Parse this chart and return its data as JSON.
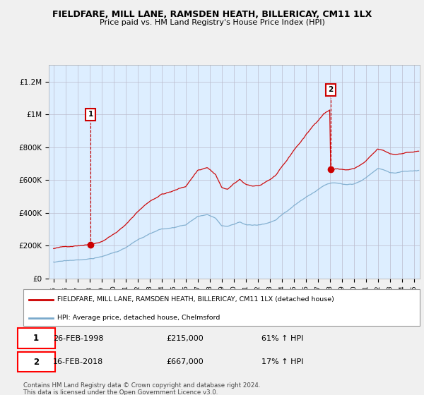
{
  "title": "FIELDFARE, MILL LANE, RAMSDEN HEATH, BILLERICAY, CM11 1LX",
  "subtitle": "Price paid vs. HM Land Registry's House Price Index (HPI)",
  "legend_line1": "FIELDFARE, MILL LANE, RAMSDEN HEATH, BILLERICAY, CM11 1LX (detached house)",
  "legend_line2": "HPI: Average price, detached house, Chelmsford",
  "sale1_date": "26-FEB-1998",
  "sale1_price": "£215,000",
  "sale1_hpi": "61% ↑ HPI",
  "sale2_date": "16-FEB-2018",
  "sale2_price": "£667,000",
  "sale2_hpi": "17% ↑ HPI",
  "footer": "Contains HM Land Registry data © Crown copyright and database right 2024.\nThis data is licensed under the Open Government Licence v3.0.",
  "red_color": "#cc0000",
  "blue_color": "#7aaacc",
  "plot_bg_color": "#ddeeff",
  "background_color": "#f0f0f0",
  "ylim": [
    0,
    1300000
  ],
  "yticks": [
    0,
    200000,
    400000,
    600000,
    800000,
    1000000,
    1200000
  ],
  "ytick_labels": [
    "£0",
    "£200K",
    "£400K",
    "£600K",
    "£800K",
    "£1M",
    "£1.2M"
  ],
  "sale1_t": 1998.12,
  "sale1_v": 215000,
  "sale2_t": 2018.12,
  "sale2_v": 667000
}
